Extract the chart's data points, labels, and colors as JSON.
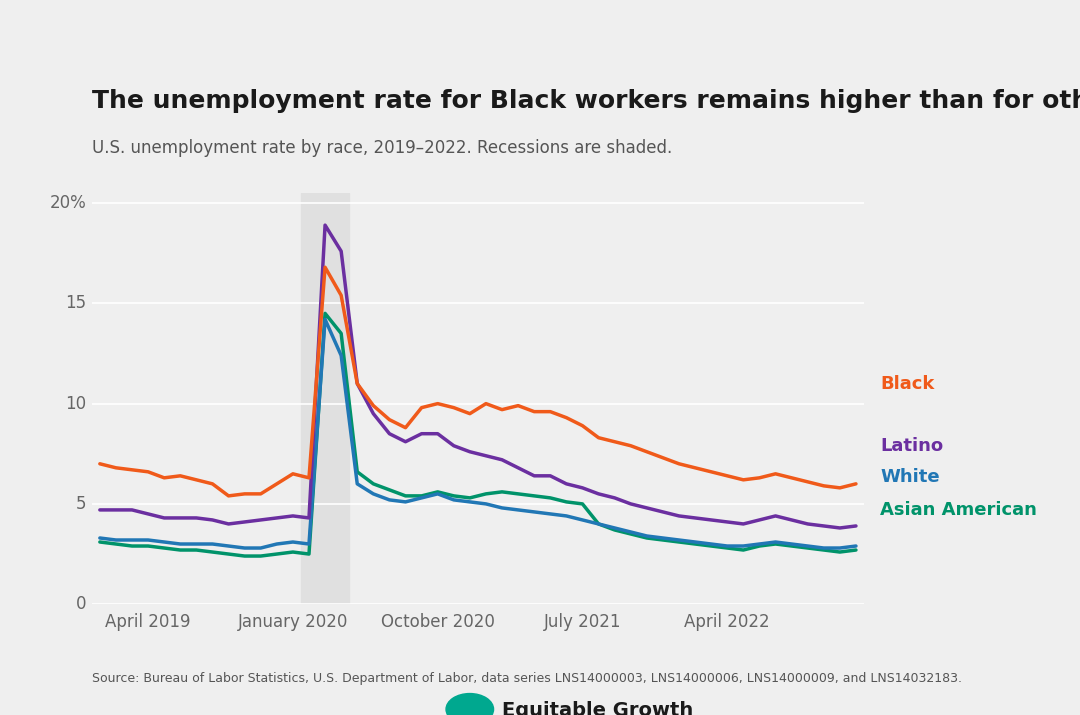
{
  "title": "The unemployment rate for Black workers remains higher than for other groups",
  "subtitle": "U.S. unemployment rate by race, 2019–2022. Recessions are shaded.",
  "source": "Source: Bureau of Labor Statistics, U.S. Department of Labor, data series LNS14000003, LNS14000006, LNS14000009, and LNS14032183.",
  "bg_color": "#efefef",
  "recession_color": "#e0e0e0",
  "recession_start_idx": 13,
  "recession_end_idx": 15,
  "series": {
    "Black": {
      "color": "#f05a1a",
      "lw": 2.5,
      "data": [
        7.0,
        6.8,
        6.7,
        6.6,
        6.3,
        6.4,
        6.2,
        6.0,
        5.4,
        5.5,
        5.5,
        6.0,
        6.5,
        6.3,
        16.8,
        15.4,
        11.0,
        9.9,
        9.2,
        8.8,
        9.8,
        10.0,
        9.8,
        9.5,
        10.0,
        9.7,
        9.9,
        9.6,
        9.6,
        9.3,
        8.9,
        8.3,
        8.1,
        7.9,
        7.6,
        7.3,
        7.0,
        6.8,
        6.6,
        6.4,
        6.2,
        6.3,
        6.5,
        6.3,
        6.1,
        5.9,
        5.8,
        6.0
      ]
    },
    "Latino": {
      "color": "#6b2fa0",
      "lw": 2.5,
      "data": [
        4.7,
        4.7,
        4.7,
        4.5,
        4.3,
        4.3,
        4.3,
        4.2,
        4.0,
        4.1,
        4.2,
        4.3,
        4.4,
        4.3,
        18.9,
        17.6,
        11.0,
        9.5,
        8.5,
        8.1,
        8.5,
        8.5,
        7.9,
        7.6,
        7.4,
        7.2,
        6.8,
        6.4,
        6.4,
        6.0,
        5.8,
        5.5,
        5.3,
        5.0,
        4.8,
        4.6,
        4.4,
        4.3,
        4.2,
        4.1,
        4.0,
        4.2,
        4.4,
        4.2,
        4.0,
        3.9,
        3.8,
        3.9
      ]
    },
    "White": {
      "color": "#2177b5",
      "lw": 2.5,
      "data": [
        3.3,
        3.2,
        3.2,
        3.2,
        3.1,
        3.0,
        3.0,
        3.0,
        2.9,
        2.8,
        2.8,
        3.0,
        3.1,
        3.0,
        14.2,
        12.4,
        6.0,
        5.5,
        5.2,
        5.1,
        5.3,
        5.5,
        5.2,
        5.1,
        5.0,
        4.8,
        4.7,
        4.6,
        4.5,
        4.4,
        4.2,
        4.0,
        3.8,
        3.6,
        3.4,
        3.3,
        3.2,
        3.1,
        3.0,
        2.9,
        2.9,
        3.0,
        3.1,
        3.0,
        2.9,
        2.8,
        2.8,
        2.9
      ]
    },
    "Asian American": {
      "color": "#00936a",
      "lw": 2.5,
      "data": [
        3.1,
        3.0,
        2.9,
        2.9,
        2.8,
        2.7,
        2.7,
        2.6,
        2.5,
        2.4,
        2.4,
        2.5,
        2.6,
        2.5,
        14.5,
        13.5,
        6.6,
        6.0,
        5.7,
        5.4,
        5.4,
        5.6,
        5.4,
        5.3,
        5.5,
        5.6,
        5.5,
        5.4,
        5.3,
        5.1,
        5.0,
        4.0,
        3.7,
        3.5,
        3.3,
        3.2,
        3.1,
        3.0,
        2.9,
        2.8,
        2.7,
        2.9,
        3.0,
        2.9,
        2.8,
        2.7,
        2.6,
        2.7
      ]
    }
  },
  "n_points": 48,
  "xlim": [
    -0.5,
    47.5
  ],
  "ylim": [
    0,
    20.5
  ],
  "yticks": [
    0,
    5,
    10,
    15,
    20
  ],
  "ytick_labels": [
    "0",
    "5",
    "10",
    "15",
    "20%"
  ],
  "xtick_positions": [
    3,
    12,
    21,
    30,
    39
  ],
  "xtick_labels": [
    "April 2019",
    "January 2020",
    "October 2020",
    "July 2021",
    "April 2022"
  ],
  "legend_items": [
    {
      "label": "Black",
      "color": "#f05a1a",
      "y_axes": 0.535
    },
    {
      "label": "Latino",
      "color": "#6b2fa0",
      "y_axes": 0.385
    },
    {
      "label": "White",
      "color": "#2177b5",
      "y_axes": 0.31
    },
    {
      "label": "Asian American",
      "color": "#00936a",
      "y_axes": 0.23
    }
  ],
  "grid_color": "#ffffff",
  "grid_lw": 1.2,
  "title_fontsize": 18,
  "subtitle_fontsize": 12,
  "tick_fontsize": 12,
  "source_fontsize": 9,
  "legend_fontsize": 13
}
